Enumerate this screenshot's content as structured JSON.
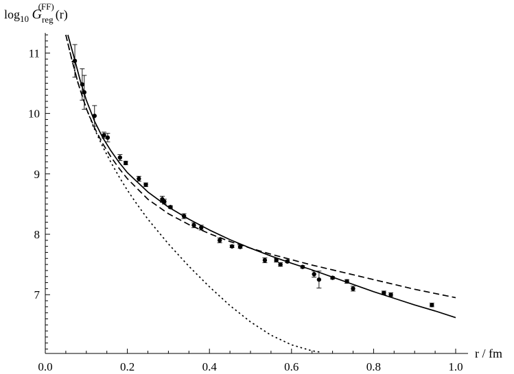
{
  "chart_data": {
    "type": "scatter",
    "title": "",
    "xlabel": "r / fm",
    "ylabel": {
      "prefix": "log",
      "prefix_sub": "10",
      "symbol": "G",
      "symbol_sub": "reg",
      "symbol_sup": "(FF)",
      "arg": "(r)"
    },
    "xlim": [
      0.0,
      1.02
    ],
    "ylim": [
      6.05,
      11.3
    ],
    "x_ticks": [
      0.0,
      0.2,
      0.4,
      0.6,
      0.8,
      1.0
    ],
    "x_tick_labels": [
      "0.0",
      "0.2",
      "0.4",
      "0.6",
      "0.8",
      "1.0"
    ],
    "y_ticks": [
      7,
      8,
      9,
      10,
      11
    ],
    "y_tick_labels": [
      "7",
      "8",
      "9",
      "10",
      "11"
    ],
    "grid": false,
    "points": [
      {
        "x": 0.072,
        "y": 10.87,
        "err": 0.27
      },
      {
        "x": 0.09,
        "y": 10.48,
        "err": 0.26
      },
      {
        "x": 0.095,
        "y": 10.35,
        "err": 0.28
      },
      {
        "x": 0.12,
        "y": 9.96,
        "err": 0.17
      },
      {
        "x": 0.143,
        "y": 9.64,
        "err": 0.05
      },
      {
        "x": 0.152,
        "y": 9.6,
        "err": 0.07
      },
      {
        "x": 0.182,
        "y": 9.27,
        "err": 0.05
      },
      {
        "x": 0.196,
        "y": 9.18,
        "err": 0.03
      },
      {
        "x": 0.228,
        "y": 8.92,
        "err": 0.04
      },
      {
        "x": 0.245,
        "y": 8.82,
        "err": 0.03
      },
      {
        "x": 0.285,
        "y": 8.58,
        "err": 0.05
      },
      {
        "x": 0.29,
        "y": 8.54,
        "err": 0.04
      },
      {
        "x": 0.305,
        "y": 8.45,
        "err": 0.02
      },
      {
        "x": 0.338,
        "y": 8.3,
        "err": 0.04
      },
      {
        "x": 0.362,
        "y": 8.15,
        "err": 0.04
      },
      {
        "x": 0.38,
        "y": 8.11,
        "err": 0.04
      },
      {
        "x": 0.425,
        "y": 7.9,
        "err": 0.04
      },
      {
        "x": 0.455,
        "y": 7.8,
        "err": 0.02
      },
      {
        "x": 0.475,
        "y": 7.79,
        "err": 0.02
      },
      {
        "x": 0.535,
        "y": 7.57,
        "err": 0.04
      },
      {
        "x": 0.563,
        "y": 7.57,
        "err": 0.03
      },
      {
        "x": 0.573,
        "y": 7.5,
        "err": 0.03
      },
      {
        "x": 0.59,
        "y": 7.55,
        "err": 0.02
      },
      {
        "x": 0.627,
        "y": 7.46,
        "err": 0.02
      },
      {
        "x": 0.655,
        "y": 7.34,
        "err": 0.05
      },
      {
        "x": 0.667,
        "y": 7.25,
        "err": 0.14
      },
      {
        "x": 0.7,
        "y": 7.28,
        "err": 0.02
      },
      {
        "x": 0.735,
        "y": 7.22,
        "err": 0.03
      },
      {
        "x": 0.75,
        "y": 7.1,
        "err": 0.04
      },
      {
        "x": 0.825,
        "y": 7.03,
        "err": 0.03
      },
      {
        "x": 0.842,
        "y": 7.0,
        "err": 0.03
      },
      {
        "x": 0.942,
        "y": 6.83,
        "err": 0.03
      }
    ],
    "curves": [
      {
        "style": "solid",
        "x": [
          0.055,
          0.07,
          0.085,
          0.1,
          0.12,
          0.14,
          0.16,
          0.18,
          0.2,
          0.25,
          0.3,
          0.35,
          0.4,
          0.45,
          0.5,
          0.55,
          0.6,
          0.65,
          0.7,
          0.75,
          0.8,
          0.85,
          0.9,
          0.95,
          1.0
        ],
        "y": [
          11.3,
          10.93,
          10.55,
          10.22,
          9.87,
          9.6,
          9.38,
          9.19,
          9.02,
          8.7,
          8.45,
          8.25,
          8.07,
          7.91,
          7.77,
          7.64,
          7.52,
          7.41,
          7.29,
          7.17,
          7.05,
          6.94,
          6.83,
          6.73,
          6.62
        ]
      },
      {
        "style": "dashed",
        "x": [
          0.05,
          0.065,
          0.08,
          0.1,
          0.12,
          0.14,
          0.16,
          0.18,
          0.2,
          0.25,
          0.3,
          0.35,
          0.4,
          0.45,
          0.5,
          0.55,
          0.6,
          0.65,
          0.7,
          0.75,
          0.8,
          0.85,
          0.9,
          0.95,
          1.0
        ],
        "y": [
          11.3,
          10.88,
          10.5,
          10.08,
          9.76,
          9.5,
          9.28,
          9.09,
          8.92,
          8.58,
          8.34,
          8.16,
          8.01,
          7.88,
          7.77,
          7.67,
          7.58,
          7.49,
          7.41,
          7.33,
          7.25,
          7.17,
          7.09,
          7.02,
          6.95
        ]
      },
      {
        "style": "dotted",
        "x": [
          0.05,
          0.065,
          0.08,
          0.1,
          0.12,
          0.14,
          0.16,
          0.18,
          0.2,
          0.22,
          0.25,
          0.3,
          0.35,
          0.4,
          0.45,
          0.5,
          0.55,
          0.6,
          0.65,
          0.67
        ],
        "y": [
          11.3,
          10.88,
          10.5,
          10.08,
          9.74,
          9.45,
          9.19,
          8.95,
          8.73,
          8.53,
          8.25,
          7.84,
          7.47,
          7.13,
          6.82,
          6.55,
          6.33,
          6.17,
          6.07,
          6.05
        ]
      }
    ]
  }
}
